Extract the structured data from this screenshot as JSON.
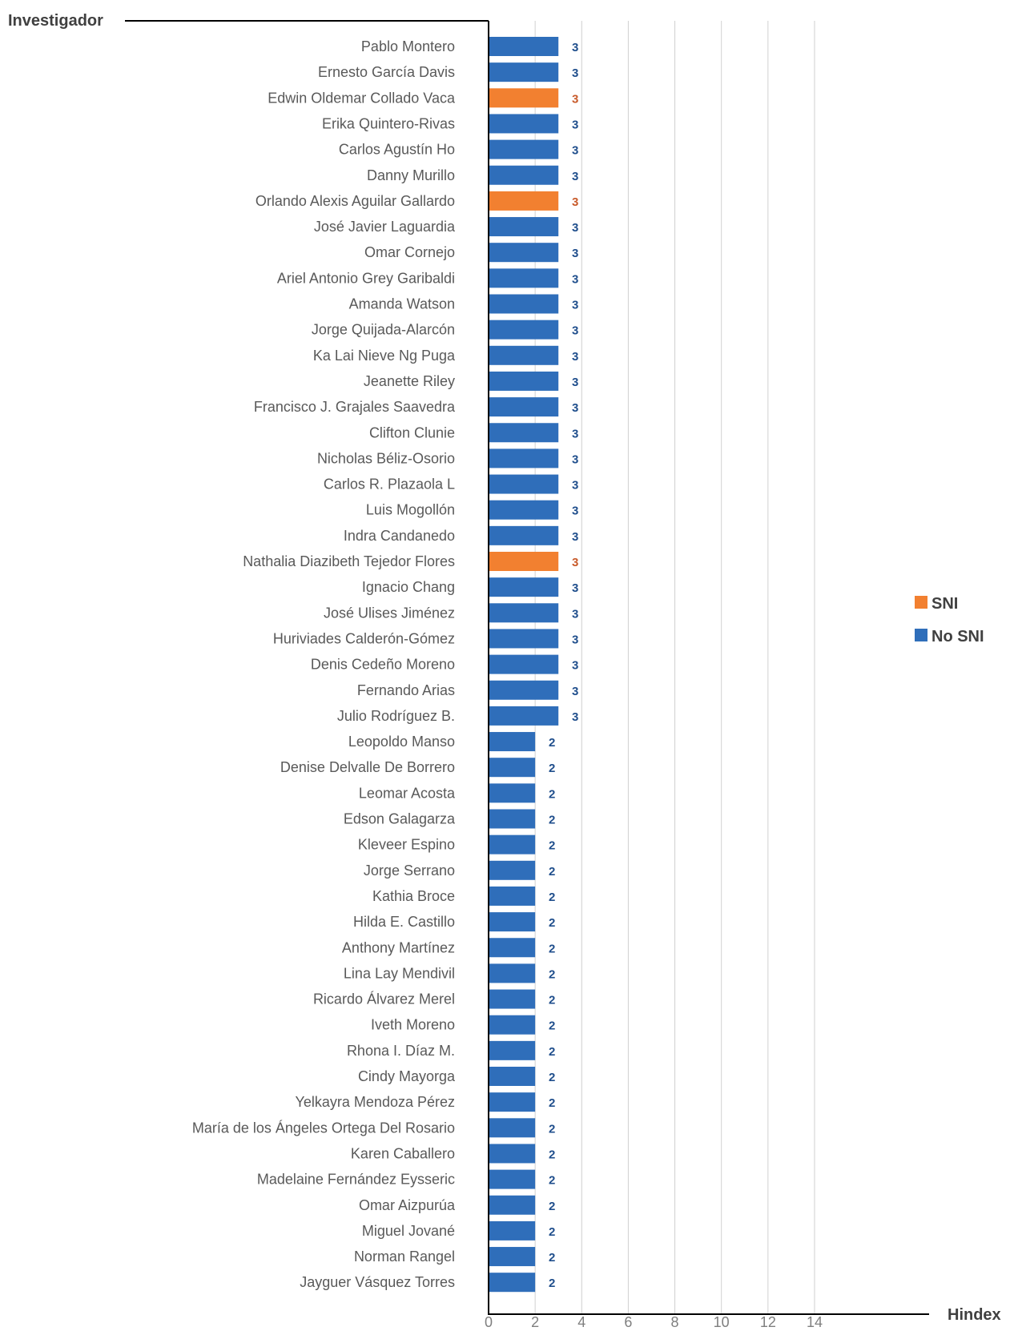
{
  "chart_data": {
    "type": "bar",
    "orientation": "horizontal",
    "y_axis_title": "Investigador",
    "x_axis_title": "Hindex",
    "xlim": [
      0,
      14
    ],
    "x_ticks": [
      "0",
      "2",
      "4",
      "6",
      "8",
      "10",
      "12",
      "14"
    ],
    "grid": true,
    "legend_position": "right",
    "legend": [
      {
        "name": "SNI",
        "color": "#f28030"
      },
      {
        "name": "No SNI",
        "color": "#2f6eba"
      }
    ],
    "categories": [
      "Pablo Montero",
      "Ernesto García Davis",
      "Edwin Oldemar Collado Vaca",
      "Erika Quintero-Rivas",
      "Carlos Agustín Ho",
      "Danny Murillo",
      "Orlando Alexis Aguilar Gallardo",
      "José Javier Laguardia",
      "Omar Cornejo",
      "Ariel Antonio Grey Garibaldi",
      "Amanda Watson",
      "Jorge Quijada-Alarcón",
      "Ka Lai Nieve Ng Puga",
      "Jeanette Riley",
      "Francisco J. Grajales Saavedra",
      "Clifton Clunie",
      "Nicholas Béliz-Osorio",
      "Carlos R. Plazaola L",
      "Luis Mogollón",
      "Indra Candanedo",
      "Nathalia Diazibeth Tejedor Flores",
      "Ignacio Chang",
      "José Ulises Jiménez",
      "Huriviades Calderón-Gómez",
      "Denis Cedeño Moreno",
      "Fernando Arias",
      "Julio Rodríguez B.",
      "Leopoldo Manso",
      "Denise Delvalle De Borrero",
      "Leomar Acosta",
      "Edson Galagarza",
      "Kleveer Espino",
      "Jorge Serrano",
      "Kathia Broce",
      "Hilda E. Castillo",
      "Anthony Martínez",
      "Lina Lay Mendivil",
      "Ricardo Álvarez Merel",
      "Iveth Moreno",
      "Rhona I. Díaz M.",
      "Cindy Mayorga",
      "Yelkayra Mendoza Pérez",
      "María de los Ángeles Ortega Del Rosario",
      "Karen Caballero",
      "Madelaine Fernández Eysseric",
      "Omar Aizpurúa",
      "Miguel Jované",
      "Norman Rangel",
      "Jayguer Vásquez Torres"
    ],
    "values": [
      3,
      3,
      3,
      3,
      3,
      3,
      3,
      3,
      3,
      3,
      3,
      3,
      3,
      3,
      3,
      3,
      3,
      3,
      3,
      3,
      3,
      3,
      3,
      3,
      3,
      3,
      3,
      2,
      2,
      2,
      2,
      2,
      2,
      2,
      2,
      2,
      2,
      2,
      2,
      2,
      2,
      2,
      2,
      2,
      2,
      2,
      2,
      2,
      2
    ],
    "series_membership": [
      "No SNI",
      "No SNI",
      "SNI",
      "No SNI",
      "No SNI",
      "No SNI",
      "SNI",
      "No SNI",
      "No SNI",
      "No SNI",
      "No SNI",
      "No SNI",
      "No SNI",
      "No SNI",
      "No SNI",
      "No SNI",
      "No SNI",
      "No SNI",
      "No SNI",
      "No SNI",
      "SNI",
      "No SNI",
      "No SNI",
      "No SNI",
      "No SNI",
      "No SNI",
      "No SNI",
      "No SNI",
      "No SNI",
      "No SNI",
      "No SNI",
      "No SNI",
      "No SNI",
      "No SNI",
      "No SNI",
      "No SNI",
      "No SNI",
      "No SNI",
      "No SNI",
      "No SNI",
      "No SNI",
      "No SNI",
      "No SNI",
      "No SNI",
      "No SNI",
      "No SNI",
      "No SNI",
      "No SNI",
      "No SNI"
    ],
    "label_colors": {
      "SNI": "#c85a2a",
      "No SNI": "#1f4e8c"
    }
  }
}
